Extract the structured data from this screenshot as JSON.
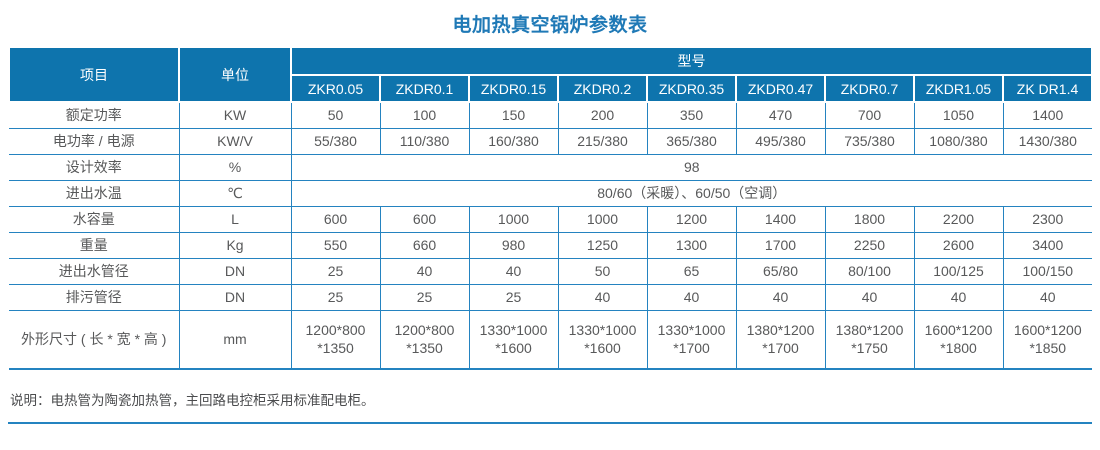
{
  "title": "电加热真空锅炉参数表",
  "colors": {
    "header_bg": "#0e74ad",
    "grid_line": "#2483c0",
    "title_text": "#1f79b6",
    "body_text": "#58595a"
  },
  "table": {
    "header": {
      "item": "项目",
      "unit": "单位",
      "model_group": "型号",
      "models": [
        "ZKR0.05",
        "ZKDR0.1",
        "ZKDR0.15",
        "ZKDR0.2",
        "ZKDR0.35",
        "ZKDR0.47",
        "ZKDR0.7",
        "ZKDR1.05",
        "ZK DR1.4"
      ]
    },
    "rows": [
      {
        "item": "额定功率",
        "unit": "KW",
        "values": [
          "50",
          "100",
          "150",
          "200",
          "350",
          "470",
          "700",
          "1050",
          "1400"
        ]
      },
      {
        "item": "电功率 / 电源",
        "unit": "KW/V",
        "values": [
          "55/380",
          "110/380",
          "160/380",
          "215/380",
          "365/380",
          "495/380",
          "735/380",
          "1080/380",
          "1430/380"
        ]
      },
      {
        "item": "设计效率",
        "unit": "%",
        "span": "98"
      },
      {
        "item": "进出水温",
        "unit": "℃",
        "span": "80/60（采暖）、60/50（空调）"
      },
      {
        "item": "水容量",
        "unit": "L",
        "values": [
          "600",
          "600",
          "1000",
          "1000",
          "1200",
          "1400",
          "1800",
          "2200",
          "2300"
        ]
      },
      {
        "item": "重量",
        "unit": "Kg",
        "values": [
          "550",
          "660",
          "980",
          "1250",
          "1300",
          "1700",
          "2250",
          "2600",
          "3400"
        ]
      },
      {
        "item": "进出水管径",
        "unit": "DN",
        "values": [
          "25",
          "40",
          "40",
          "50",
          "65",
          "65/80",
          "80/100",
          "100/125",
          "100/150"
        ]
      },
      {
        "item": "排污管径",
        "unit": "DN",
        "values": [
          "25",
          "25",
          "25",
          "40",
          "40",
          "40",
          "40",
          "40",
          "40"
        ]
      },
      {
        "item": "外形尺寸 ( 长 * 宽 * 高 )",
        "unit": "mm",
        "values": [
          "1200*800\n*1350",
          "1200*800\n*1350",
          "1330*1000\n*1600",
          "1330*1000\n*1600",
          "1330*1000\n*1700",
          "1380*1200\n*1700",
          "1380*1200\n*1750",
          "1600*1200\n*1800",
          "1600*1200\n*1850"
        ]
      }
    ]
  },
  "note": "说明：电热管为陶瓷加热管，主回路电控柜采用标准配电柜。"
}
